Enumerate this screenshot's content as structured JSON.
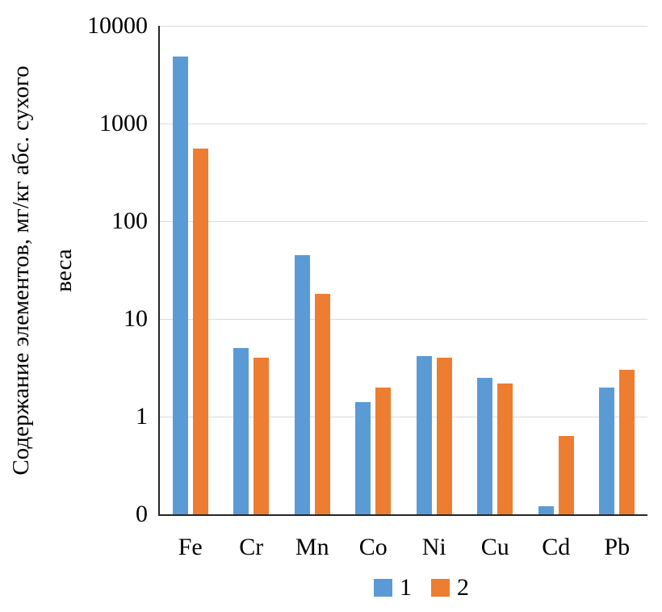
{
  "chart_data": {
    "type": "bar",
    "title": "",
    "ylabel": "Содержание элементов, мг/кг абс. сухого веса",
    "ylabel_lines": [
      "Содержание элементов, мг/кг абс. сухого",
      "веса"
    ],
    "xlabel": "",
    "categories": [
      "Fe",
      "Cr",
      "Mn",
      "Co",
      "Ni",
      "Cu",
      "Cd",
      "Pb"
    ],
    "series": [
      {
        "name": "1",
        "color": "#5B9BD5",
        "values": [
          4900,
          5.0,
          45,
          1.4,
          4.2,
          2.5,
          0.12,
          2.0
        ]
      },
      {
        "name": "2",
        "color": "#ED7D31",
        "values": [
          550,
          4.0,
          18,
          2.0,
          4.0,
          2.2,
          0.63,
          3.0
        ]
      }
    ],
    "y_axis": {
      "scale": "log",
      "min": 0.1,
      "max": 10000,
      "tick_values": [
        10000,
        1000,
        100,
        10,
        1,
        0.1
      ],
      "tick_labels": [
        "10000",
        "1000",
        "100",
        "10",
        "1",
        "0"
      ]
    },
    "grid": true,
    "legend_position": "bottom",
    "colors": {
      "background": "#FFFFFF",
      "gridline": "#D9D9D9",
      "axis": "#262626",
      "text": "#000000"
    }
  }
}
